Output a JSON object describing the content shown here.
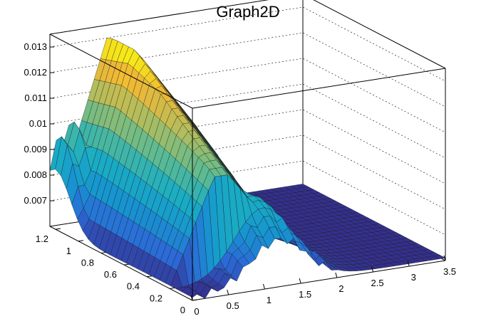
{
  "chart_data": {
    "type": "surface",
    "title": "Graph2D",
    "xlabel": "",
    "ylabel": "",
    "zlabel": "",
    "xlim": [
      0,
      3.5
    ],
    "ylim": [
      0,
      1.25
    ],
    "zlim": [
      0.006,
      0.0135
    ],
    "x_ticks": [
      "0",
      "0.5",
      "1",
      "1.5",
      "2",
      "2.5",
      "3",
      "3.5"
    ],
    "y_ticks": [
      "0",
      "0.2",
      "0.4",
      "0.6",
      "0.8",
      "1",
      "1.2"
    ],
    "z_ticks": [
      "0.007",
      "0.008",
      "0.009",
      "0.01",
      "0.011",
      "0.012",
      "0.013"
    ],
    "grid": true,
    "colormap": [
      "#352a87",
      "#2b6ad8",
      "#1695d0",
      "#1aaec3",
      "#5dbb92",
      "#b0bd5e",
      "#f0b835",
      "#f9fb0e"
    ],
    "ridge_points": [
      {
        "x": 0.0,
        "y": 1.2,
        "z": 0.0068
      },
      {
        "x": 0.05,
        "y": 1.2,
        "z": 0.0122
      },
      {
        "x": 0.1,
        "y": 1.2,
        "z": 0.0098
      },
      {
        "x": 0.2,
        "y": 1.2,
        "z": 0.0102
      },
      {
        "x": 0.3,
        "y": 1.2,
        "z": 0.01
      },
      {
        "x": 0.8,
        "y": 1.05,
        "z": 0.0131
      },
      {
        "x": 1.7,
        "y": 1.15,
        "z": 0.0099
      },
      {
        "x": 1.2,
        "y": 0.2,
        "z": 0.009
      },
      {
        "x": 2.6,
        "y": 0.0,
        "z": 0.006
      },
      {
        "x": 3.5,
        "y": 0.0,
        "z": 0.006
      }
    ]
  }
}
